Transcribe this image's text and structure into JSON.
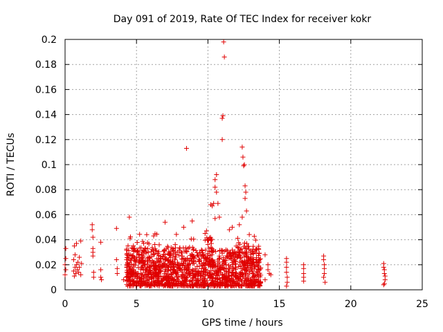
{
  "chart_data": {
    "type": "scatter",
    "title": "Day 091 of 2019, Rate Of TEC Index for receiver kokr",
    "xlabel": "GPS time / hours",
    "ylabel": "ROTI / TECUs",
    "xlim": [
      0,
      25
    ],
    "ylim": [
      0,
      0.2
    ],
    "grid": true,
    "marker": "+",
    "marker_color": "#e00000",
    "x_ticks": [
      0,
      5,
      10,
      15,
      20,
      25
    ],
    "x_tick_labels": [
      "0",
      "5",
      "10",
      "15",
      "20",
      "25"
    ],
    "y_ticks": [
      0,
      0.02,
      0.04,
      0.06,
      0.08,
      0.1,
      0.12,
      0.14,
      0.16,
      0.18,
      0.2
    ],
    "y_tick_labels": [
      "0",
      "0.02",
      "0.04",
      "0.06",
      "0.08",
      "0.1",
      "0.12",
      "0.14",
      "0.16",
      "0.18",
      "0.2"
    ],
    "series": [
      {
        "name": "ROTI",
        "points": [
          [
            0.0,
            0.012
          ],
          [
            0.0,
            0.02
          ],
          [
            0.05,
            0.033
          ],
          [
            0.05,
            0.025
          ],
          [
            0.05,
            0.016
          ],
          [
            0.6,
            0.015
          ],
          [
            0.6,
            0.024
          ],
          [
            0.65,
            0.035
          ],
          [
            0.65,
            0.011
          ],
          [
            0.7,
            0.018
          ],
          [
            0.7,
            0.028
          ],
          [
            0.75,
            0.013
          ],
          [
            0.8,
            0.02
          ],
          [
            0.8,
            0.037
          ],
          [
            0.85,
            0.016
          ],
          [
            0.9,
            0.022
          ],
          [
            0.95,
            0.014
          ],
          [
            1.0,
            0.026
          ],
          [
            1.0,
            0.018
          ],
          [
            1.1,
            0.012
          ],
          [
            1.1,
            0.039
          ],
          [
            1.15,
            0.021
          ],
          [
            1.9,
            0.052
          ],
          [
            1.9,
            0.048
          ],
          [
            1.95,
            0.042
          ],
          [
            1.95,
            0.033
          ],
          [
            1.95,
            0.027
          ],
          [
            2.0,
            0.014
          ],
          [
            2.0,
            0.01
          ],
          [
            1.95,
            0.03
          ],
          [
            2.5,
            0.038
          ],
          [
            2.5,
            0.016
          ],
          [
            2.5,
            0.01
          ],
          [
            2.55,
            0.008
          ],
          [
            3.6,
            0.049
          ],
          [
            3.6,
            0.024
          ],
          [
            3.65,
            0.017
          ],
          [
            3.65,
            0.013
          ],
          [
            4.1,
            0.008
          ],
          [
            8.5,
            0.113
          ],
          [
            10.2,
            0.068
          ],
          [
            10.3,
            0.067
          ],
          [
            10.4,
            0.069
          ],
          [
            10.5,
            0.088
          ],
          [
            10.5,
            0.082
          ],
          [
            10.6,
            0.078
          ],
          [
            10.6,
            0.092
          ],
          [
            10.5,
            0.057
          ],
          [
            10.7,
            0.069
          ],
          [
            10.8,
            0.058
          ],
          [
            11.0,
            0.12
          ],
          [
            11.0,
            0.137
          ],
          [
            11.05,
            0.139
          ],
          [
            11.1,
            0.198
          ],
          [
            11.15,
            0.186
          ],
          [
            12.4,
            0.114
          ],
          [
            12.45,
            0.106
          ],
          [
            12.5,
            0.099
          ],
          [
            12.55,
            0.1
          ],
          [
            12.6,
            0.083
          ],
          [
            12.65,
            0.078
          ],
          [
            12.6,
            0.073
          ],
          [
            12.7,
            0.063
          ],
          [
            12.4,
            0.058
          ],
          [
            12.2,
            0.052
          ],
          [
            11.7,
            0.05
          ],
          [
            11.5,
            0.048
          ],
          [
            9.9,
            0.047
          ],
          [
            9.8,
            0.045
          ],
          [
            8.3,
            0.05
          ],
          [
            8.9,
            0.055
          ],
          [
            7.0,
            0.054
          ],
          [
            6.2,
            0.043
          ],
          [
            5.5,
            0.037
          ],
          [
            4.5,
            0.058
          ],
          [
            14.0,
            0.028
          ],
          [
            14.2,
            0.016
          ],
          [
            14.3,
            0.013
          ],
          [
            14.4,
            0.012
          ],
          [
            14.2,
            0.02
          ],
          [
            14.0,
            0.008
          ],
          [
            15.5,
            0.025
          ],
          [
            15.5,
            0.022
          ],
          [
            15.5,
            0.018
          ],
          [
            15.5,
            0.014
          ],
          [
            15.55,
            0.01
          ],
          [
            15.55,
            0.006
          ],
          [
            15.5,
            0.003
          ],
          [
            16.7,
            0.02
          ],
          [
            16.7,
            0.017
          ],
          [
            16.7,
            0.013
          ],
          [
            16.7,
            0.01
          ],
          [
            16.7,
            0.007
          ],
          [
            18.1,
            0.027
          ],
          [
            18.1,
            0.024
          ],
          [
            18.15,
            0.02
          ],
          [
            18.15,
            0.017
          ],
          [
            18.15,
            0.013
          ],
          [
            18.1,
            0.01
          ],
          [
            18.2,
            0.006
          ],
          [
            22.3,
            0.021
          ],
          [
            22.3,
            0.018
          ],
          [
            22.35,
            0.016
          ],
          [
            22.35,
            0.013
          ],
          [
            22.4,
            0.011
          ],
          [
            22.4,
            0.008
          ],
          [
            22.35,
            0.005
          ],
          [
            22.3,
            0.004
          ]
        ],
        "dense_clusters": [
          {
            "x_range": [
              4.3,
              9.0
            ],
            "y_range": [
              0.003,
              0.034
            ],
            "count": 620
          },
          {
            "x_range": [
              4.3,
              9.0
            ],
            "y_range": [
              0.01,
              0.045
            ],
            "count": 110
          },
          {
            "x_range": [
              9.0,
              11.8
            ],
            "y_range": [
              0.003,
              0.032
            ],
            "count": 380
          },
          {
            "x_range": [
              9.8,
              10.3
            ],
            "y_range": [
              0.02,
              0.042
            ],
            "count": 40
          },
          {
            "x_range": [
              11.8,
              13.7
            ],
            "y_range": [
              0.003,
              0.035
            ],
            "count": 260
          },
          {
            "x_range": [
              12.0,
              13.6
            ],
            "y_range": [
              0.02,
              0.045
            ],
            "count": 40
          }
        ]
      }
    ]
  }
}
